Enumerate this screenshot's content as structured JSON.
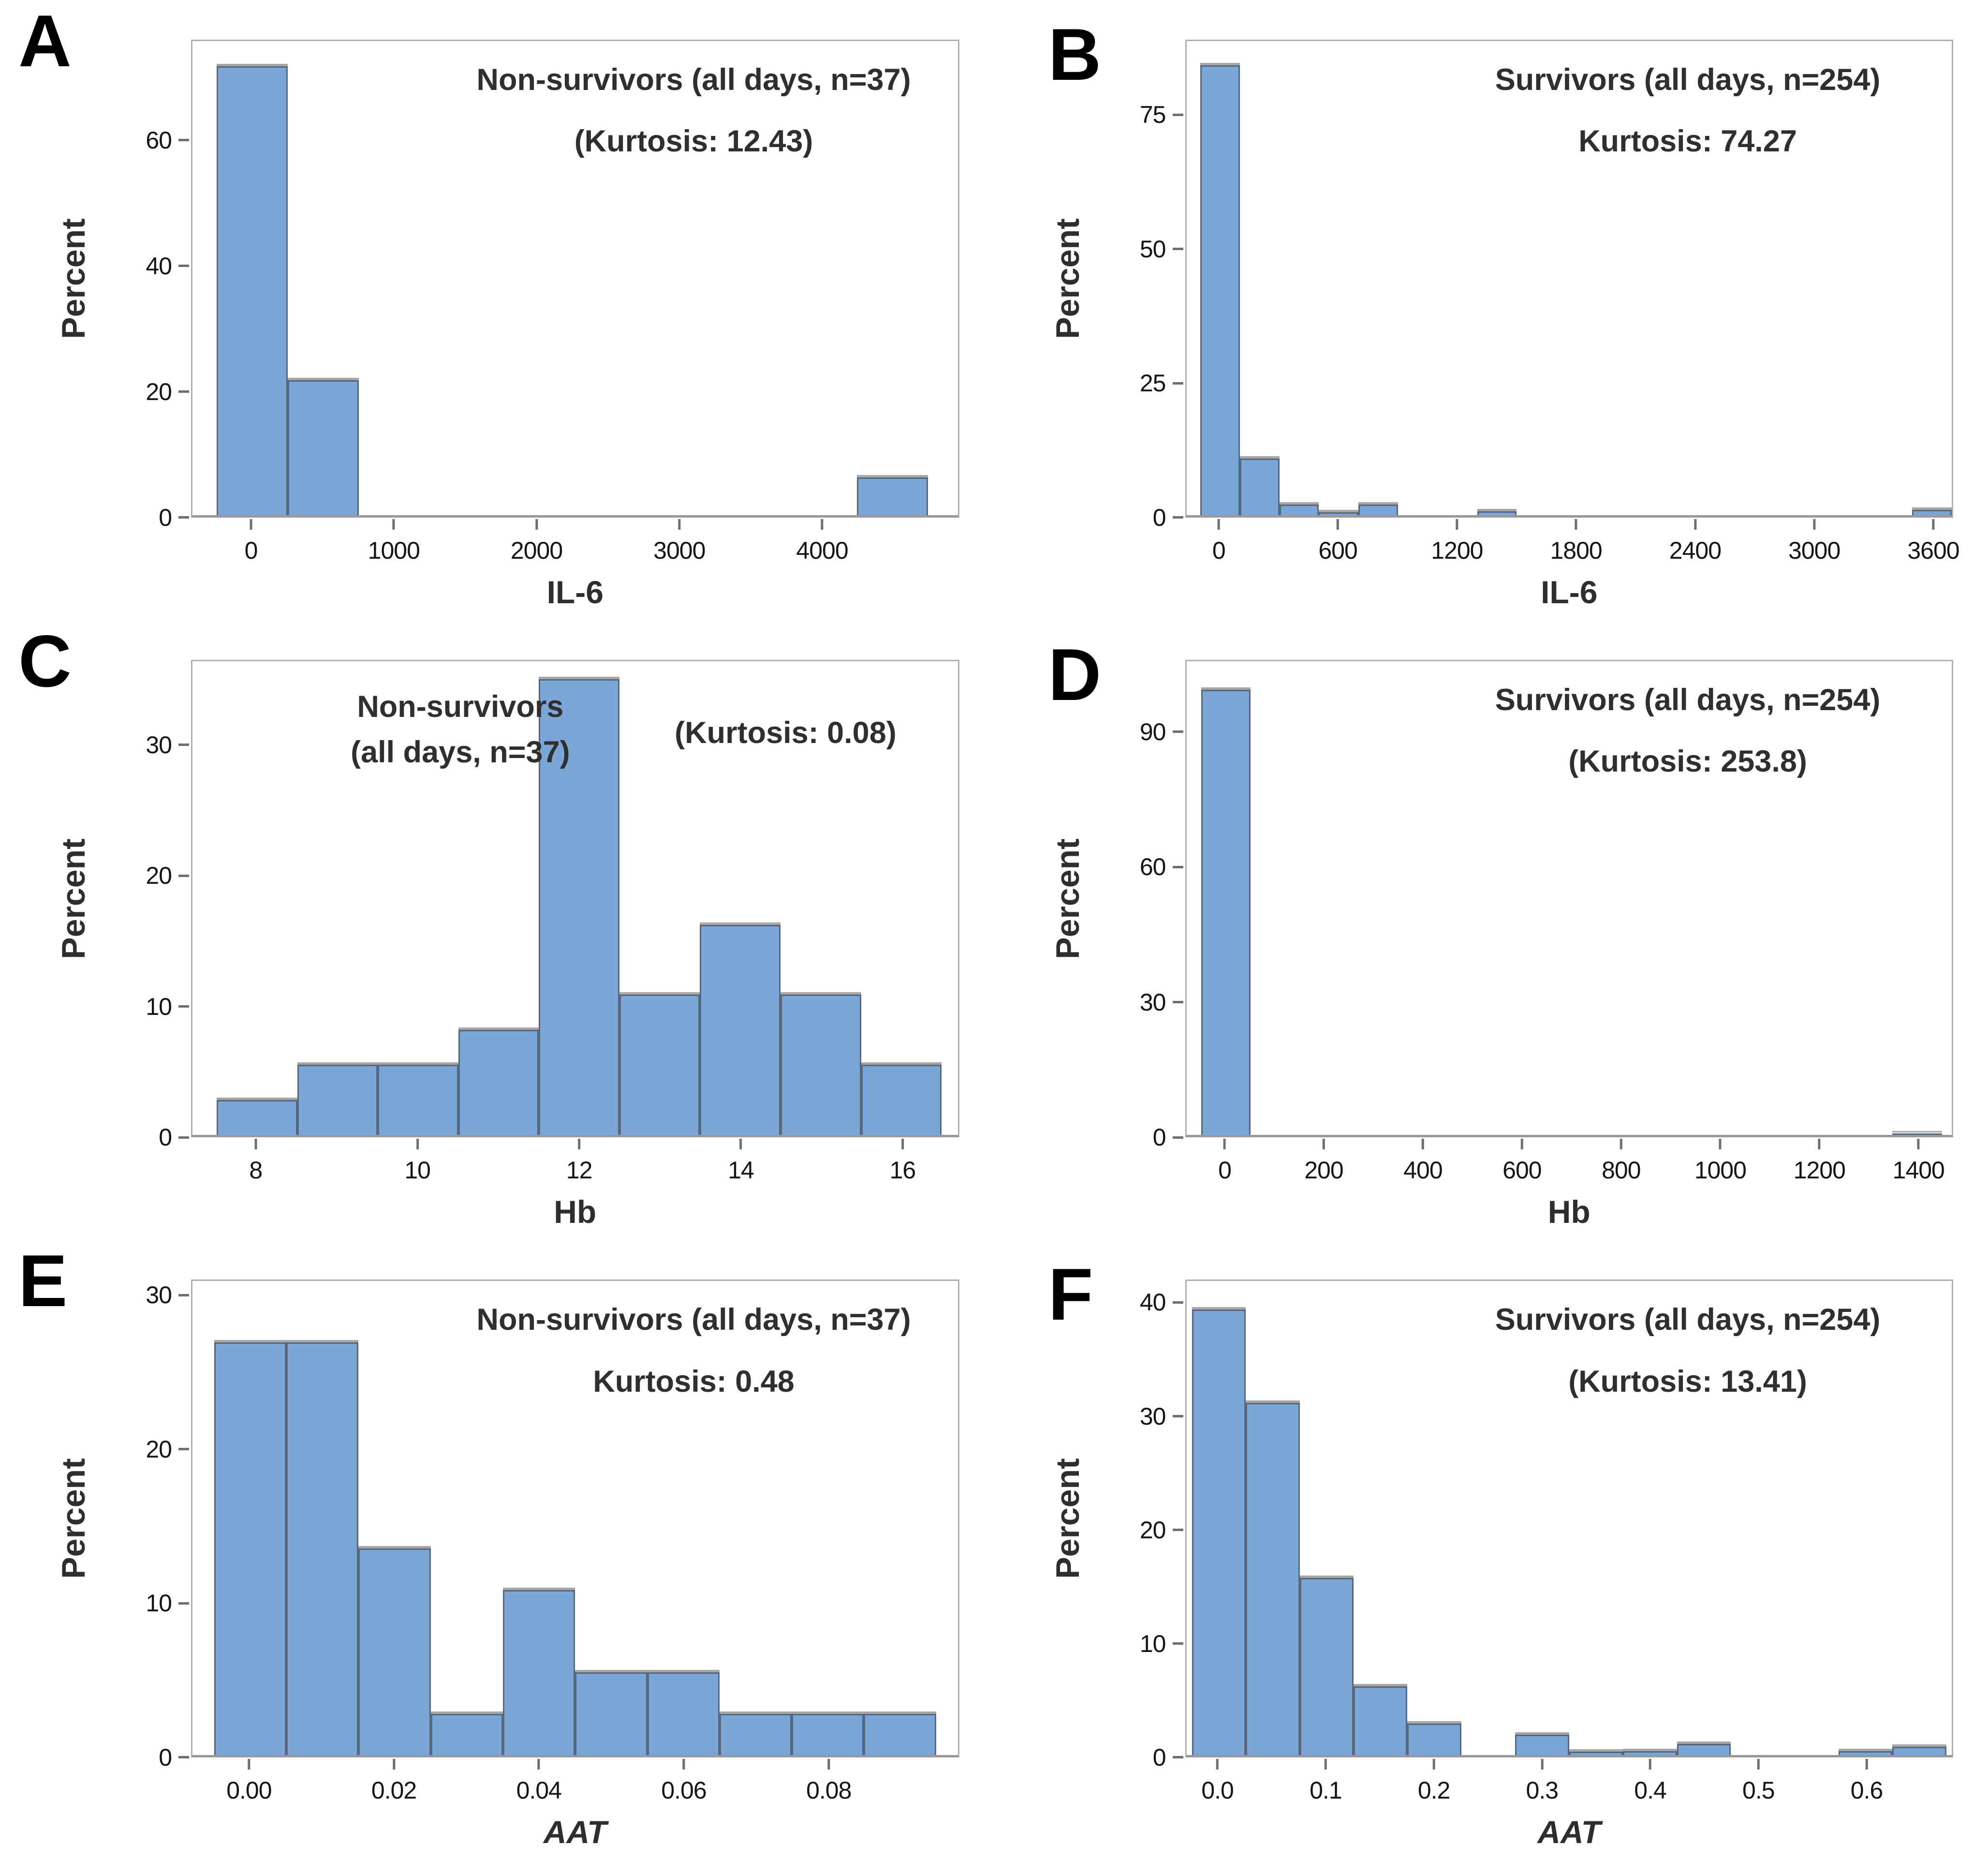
{
  "figure": {
    "background": "#ffffff",
    "bar_fill": "#7da6d8",
    "bar_border": "#55677d",
    "bar_shadow": "#a6a6a6",
    "frame_color": "#b2b2b2",
    "baseline_color": "#999999",
    "tick_mark_color": "#6e6e6e",
    "text_color": "#2f2f2f"
  },
  "chart_data": [
    {
      "letter": "A",
      "type": "bar",
      "subtype": "histogram",
      "annotation_lines": [
        "Non-survivors (all days, n=37)",
        "(Kurtosis: 12.43)"
      ],
      "annot_layout": "right",
      "xlabel": "IL-6",
      "xlabel_style": "normal",
      "ylabel": "Percent",
      "bin_width": 500,
      "bin_centers": [
        0,
        500,
        4500
      ],
      "values": [
        72,
        21.6,
        6
      ],
      "xtick_values": [
        0,
        1000,
        2000,
        3000,
        4000
      ],
      "xtick_labels": [
        "0",
        "1000",
        "2000",
        "3000",
        "4000"
      ],
      "yticks": [
        0,
        20,
        40,
        60
      ],
      "xlim": [
        -420,
        4960
      ],
      "ylim": [
        0,
        76
      ],
      "grid": false,
      "legend": null
    },
    {
      "letter": "B",
      "type": "bar",
      "subtype": "histogram",
      "annotation_lines": [
        "Survivors (all days, n=254)",
        "Kurtosis: 74.27"
      ],
      "annot_layout": "right",
      "xlabel": "IL-6",
      "xlabel_style": "normal",
      "ylabel": "Percent",
      "bin_width": 200,
      "bin_centers": [
        0,
        200,
        400,
        600,
        800,
        1400,
        3600
      ],
      "values": [
        84.5,
        10.6,
        2,
        0.5,
        2,
        0.7,
        1
      ],
      "xtick_values": [
        0,
        600,
        1200,
        1800,
        2400,
        3000,
        3600
      ],
      "xtick_labels": [
        "0",
        "600",
        "1200",
        "1800",
        "2400",
        "3000",
        "3600"
      ],
      "yticks": [
        0,
        25,
        50,
        75
      ],
      "xlim": [
        -170,
        3700
      ],
      "ylim": [
        0,
        89
      ],
      "grid": false,
      "legend": null
    },
    {
      "letter": "C",
      "type": "bar",
      "subtype": "histogram",
      "annotation_lines": [
        "Non-survivors",
        "(all days, n=37)",
        "(Kurtosis: 0.08)"
      ],
      "annot_layout": "split",
      "xlabel": "Hb",
      "xlabel_style": "normal",
      "ylabel": "Percent",
      "bin_width": 1,
      "bin_centers": [
        8,
        9,
        10,
        11,
        12,
        13,
        14,
        15,
        16
      ],
      "values": [
        2.7,
        5.4,
        5.4,
        8.1,
        35.1,
        10.8,
        16.2,
        10.8,
        5.4
      ],
      "xtick_values": [
        8,
        10,
        12,
        14,
        16
      ],
      "xtick_labels": [
        "8",
        "10",
        "12",
        "14",
        "16"
      ],
      "yticks": [
        0,
        10,
        20,
        30
      ],
      "xlim": [
        7.2,
        16.7
      ],
      "ylim": [
        0,
        36.5
      ],
      "grid": false,
      "legend": null
    },
    {
      "letter": "D",
      "type": "bar",
      "subtype": "histogram",
      "annotation_lines": [
        "Survivors (all days, n=254)",
        "(Kurtosis: 253.8)"
      ],
      "annot_layout": "right",
      "xlabel": "Hb",
      "xlabel_style": "normal",
      "ylabel": "Percent",
      "bin_width": 100,
      "bin_centers": [
        0,
        1400
      ],
      "values": [
        99.6,
        0.4
      ],
      "xtick_values": [
        0,
        200,
        400,
        600,
        800,
        1000,
        1200,
        1400
      ],
      "xtick_labels": [
        "0",
        "200",
        "400",
        "600",
        "800",
        "1000",
        "1200",
        "1400"
      ],
      "yticks": [
        0,
        30,
        60,
        90
      ],
      "xlim": [
        -80,
        1470
      ],
      "ylim": [
        0,
        106
      ],
      "grid": false,
      "legend": null
    },
    {
      "letter": "E",
      "type": "bar",
      "subtype": "histogram",
      "annotation_lines": [
        "Non-survivors (all days, n=37)",
        "Kurtosis: 0.48"
      ],
      "annot_layout": "right",
      "xlabel": "AAT",
      "xlabel_style": "italic",
      "ylabel": "Percent",
      "bin_width": 0.01,
      "bin_centers": [
        0,
        0.01,
        0.02,
        0.03,
        0.04,
        0.05,
        0.06,
        0.07,
        0.08,
        0.09
      ],
      "values": [
        27,
        27,
        13.5,
        2.7,
        10.8,
        5.4,
        5.4,
        2.7,
        2.7,
        2.7
      ],
      "xtick_values": [
        0,
        0.02,
        0.04,
        0.06,
        0.08
      ],
      "xtick_labels": [
        "0.00",
        "0.02",
        "0.04",
        "0.06",
        "0.08"
      ],
      "yticks": [
        0,
        10,
        20,
        30
      ],
      "xlim": [
        -0.008,
        0.098
      ],
      "ylim": [
        0,
        31
      ],
      "grid": false,
      "legend": null
    },
    {
      "letter": "F",
      "type": "bar",
      "subtype": "histogram",
      "annotation_lines": [
        "Survivors (all days, n=254)",
        "(Kurtosis: 13.41)"
      ],
      "annot_layout": "right",
      "xlabel": "AAT",
      "xlabel_style": "italic",
      "ylabel": "Percent",
      "bin_width": 0.05,
      "bin_centers": [
        0,
        0.05,
        0.1,
        0.15,
        0.2,
        0.3,
        0.35,
        0.4,
        0.45,
        0.6,
        0.65
      ],
      "values": [
        39.5,
        31.2,
        15.7,
        6.1,
        2.8,
        1.8,
        0.3,
        0.35,
        1.0,
        0.35,
        0.75
      ],
      "xtick_values": [
        0,
        0.1,
        0.2,
        0.3,
        0.4,
        0.5,
        0.6
      ],
      "xtick_labels": [
        "0.0",
        "0.1",
        "0.2",
        "0.3",
        "0.4",
        "0.5",
        "0.6"
      ],
      "yticks": [
        0,
        10,
        20,
        30,
        40
      ],
      "xlim": [
        -0.03,
        0.68
      ],
      "ylim": [
        0,
        42
      ],
      "grid": false,
      "legend": null
    }
  ]
}
